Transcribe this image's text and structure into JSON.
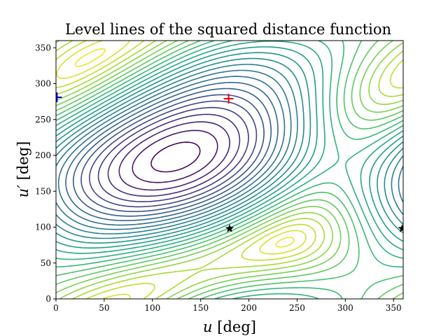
{
  "chart_data": {
    "type": "contour",
    "title": "Level lines of the squared distance function",
    "xlabel_var": "u",
    "xlabel_unit": " [deg]",
    "ylabel_var": "u′",
    "ylabel_unit": " [deg]",
    "xlim": [
      0,
      360
    ],
    "ylim": [
      0,
      360
    ],
    "xticks": [
      0,
      50,
      100,
      150,
      200,
      250,
      300,
      350
    ],
    "yticks": [
      0,
      50,
      100,
      150,
      200,
      250,
      300,
      350
    ],
    "colormap": "viridis",
    "grid": false,
    "function": {
      "u_periodic_deg": 360,
      "ecc": 0.45,
      "ecc_prime": 0.6,
      "u_shift_deg": 180,
      "rotation_deg": 100
    },
    "levels": 26,
    "markers": [
      {
        "kind": "plus",
        "x": 179,
        "y": 279,
        "color": "#e8000b"
      },
      {
        "kind": "plus",
        "x": 1,
        "y": 281,
        "color": "#0000cc"
      },
      {
        "kind": "star",
        "x": 180,
        "y": 98,
        "color": "#000000"
      },
      {
        "kind": "star",
        "x": 359,
        "y": 98,
        "color": "#000000"
      }
    ]
  }
}
